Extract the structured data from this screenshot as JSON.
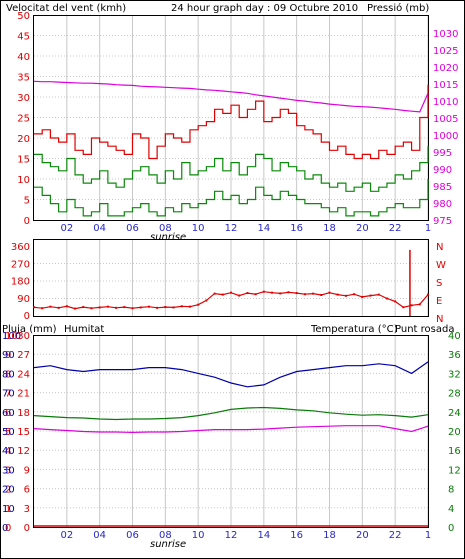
{
  "colors": {
    "wind": "#e00000",
    "gust": "#e00000",
    "avg": "#0a8a0a",
    "pressure": "#dd00dd",
    "humidity": "#0000aa",
    "temperature": "#0a7a0a",
    "dewpoint": "#dd00dd",
    "rain": "#e00000",
    "grid": "#c8c8c8",
    "text_blue": "#2828c8",
    "frame": "#000000"
  },
  "chart_data": [
    {
      "type": "line",
      "id": "wind-pressure",
      "title": "24 hour graph day : 09 Octubre 2010",
      "ylabel": "Velocitat del vent (kmh)",
      "ylabel_right": "Pressió (mb)",
      "ylim": [
        0,
        50
      ],
      "ylim_right": [
        975,
        1030
      ],
      "yticks": [
        "50",
        "45",
        "40",
        "35",
        "30",
        "25",
        "20",
        "15",
        "10",
        "5",
        "0"
      ],
      "yticks_right": [
        "1030",
        "1025",
        "1020",
        "1015",
        "1010",
        "1005",
        "1000",
        "995",
        "990",
        "985",
        "980",
        "975"
      ],
      "xticks": [
        "02",
        "04",
        "06",
        "08",
        "10",
        "12",
        "14",
        "16",
        "18",
        "20",
        "22",
        "1"
      ],
      "sunrise_label": "sunrise",
      "hours": [
        0,
        0.5,
        1,
        1.5,
        2,
        2.5,
        3,
        3.5,
        4,
        4.5,
        5,
        5.5,
        6,
        6.5,
        7,
        7.5,
        8,
        8.5,
        9,
        9.5,
        10,
        10.5,
        11,
        11.5,
        12,
        12.5,
        13,
        13.5,
        14,
        14.5,
        15,
        15.5,
        16,
        16.5,
        17,
        17.5,
        18,
        18.5,
        19,
        19.5,
        20,
        20.5,
        21,
        21.5,
        22,
        22.5,
        23,
        23.5,
        24
      ],
      "series": [
        {
          "key": "gust",
          "values": [
            21,
            22,
            20,
            19,
            21,
            17,
            16,
            20,
            19,
            18,
            17,
            16,
            21,
            20,
            15,
            18,
            21,
            20,
            19,
            22,
            23,
            24,
            27,
            26,
            28,
            25,
            27,
            29,
            24,
            25,
            27,
            26,
            23,
            22,
            21,
            19,
            17,
            18,
            16,
            15,
            16,
            15,
            17,
            16,
            18,
            19,
            17,
            25,
            33
          ]
        },
        {
          "key": "avg",
          "values": [
            16,
            14,
            13,
            12,
            15,
            11,
            9,
            10,
            12,
            9,
            8,
            10,
            12,
            13,
            11,
            9,
            12,
            10,
            14,
            11,
            12,
            13,
            15,
            12,
            14,
            11,
            13,
            16,
            15,
            12,
            14,
            13,
            12,
            10,
            11,
            9,
            8,
            9,
            7,
            8,
            9,
            7,
            8,
            9,
            11,
            10,
            12,
            14,
            18
          ]
        },
        {
          "key": "speed",
          "values": [
            8,
            6,
            4,
            2,
            5,
            3,
            1,
            2,
            4,
            1,
            1,
            2,
            3,
            4,
            2,
            1,
            3,
            2,
            4,
            3,
            4,
            5,
            7,
            5,
            6,
            4,
            5,
            8,
            6,
            5,
            7,
            6,
            5,
            4,
            4,
            3,
            2,
            3,
            1,
            2,
            2,
            1,
            2,
            3,
            4,
            3,
            3,
            5,
            10
          ]
        },
        {
          "key": "pressure",
          "axis": "right",
          "values": [
            1012.2,
            1012.1,
            1012.1,
            1012.0,
            1011.9,
            1011.8,
            1011.7,
            1011.7,
            1011.6,
            1011.5,
            1011.3,
            1011.2,
            1011.1,
            1010.9,
            1010.8,
            1010.7,
            1010.6,
            1010.5,
            1010.4,
            1010.3,
            1010.1,
            1009.9,
            1009.8,
            1009.6,
            1009.4,
            1009.2,
            1009.0,
            1008.6,
            1008.3,
            1008.0,
            1007.7,
            1007.4,
            1007.1,
            1006.9,
            1006.6,
            1006.4,
            1006.1,
            1005.9,
            1005.7,
            1005.5,
            1005.4,
            1005.3,
            1005.1,
            1004.9,
            1004.7,
            1004.4,
            1004.2,
            1004.0,
            1009.0
          ]
        }
      ]
    },
    {
      "type": "scatter",
      "id": "wind-direction",
      "ylim": [
        0,
        360
      ],
      "yticks": [
        "360",
        "270",
        "180",
        "90",
        "0"
      ],
      "compass": [
        "N",
        "W",
        "S",
        "E",
        "N"
      ],
      "xticks": [
        "02",
        "04",
        "06",
        "08",
        "10",
        "12",
        "14",
        "16",
        "18",
        "20",
        "22",
        "1"
      ],
      "hours": [
        0,
        0.5,
        1,
        1.5,
        2,
        2.5,
        3,
        3.5,
        4,
        4.5,
        5,
        5.5,
        6,
        6.5,
        7,
        7.5,
        8,
        8.5,
        9,
        9.5,
        10,
        10.5,
        11,
        11.5,
        12,
        12.5,
        13,
        13.5,
        14,
        14.5,
        15,
        15.5,
        16,
        16.5,
        17,
        17.5,
        18,
        18.5,
        19,
        19.5,
        20,
        20.5,
        21,
        21.5,
        22,
        22.5,
        23,
        23.5,
        24
      ],
      "values": [
        45,
        40,
        48,
        42,
        50,
        38,
        46,
        40,
        44,
        48,
        42,
        46,
        40,
        44,
        48,
        42,
        46,
        44,
        50,
        48,
        58,
        80,
        115,
        110,
        120,
        105,
        118,
        112,
        125,
        120,
        116,
        122,
        118,
        112,
        115,
        108,
        120,
        110,
        104,
        112,
        98,
        105,
        110,
        90,
        75,
        45,
        55,
        60,
        110
      ]
    },
    {
      "type": "line",
      "id": "rain-hum-temp",
      "legend": [
        "Pluja (mm)",
        "Humitat",
        "Temperatura (°C)",
        "Punt rosada"
      ],
      "yticks_rain": [
        "10",
        "9",
        "8",
        "7",
        "6",
        "5",
        "4",
        "3",
        "2",
        "1",
        "0"
      ],
      "yticks_hum": [
        "100",
        "90",
        "80",
        "70",
        "60",
        "50",
        "40",
        "30",
        "20",
        "10",
        "0"
      ],
      "yticks_temp_left": [
        "30",
        "27",
        "24",
        "21",
        "18",
        "15",
        "12",
        "9",
        "6",
        "3",
        "0"
      ],
      "yticks_right": [
        "40",
        "36",
        "32",
        "28",
        "24",
        "20",
        "16",
        "12",
        "8",
        "4",
        "0"
      ],
      "xticks": [
        "02",
        "04",
        "06",
        "08",
        "10",
        "12",
        "14",
        "16",
        "18",
        "20",
        "22",
        "1"
      ],
      "sunrise_label": "sunrise",
      "hours": [
        0,
        1,
        2,
        3,
        4,
        5,
        6,
        7,
        8,
        9,
        10,
        11,
        12,
        13,
        14,
        15,
        16,
        17,
        18,
        19,
        20,
        21,
        22,
        23,
        24
      ],
      "series": [
        {
          "key": "humidity",
          "values": [
            83,
            84,
            82,
            81,
            82,
            82,
            82,
            83,
            83,
            82,
            80,
            78,
            75,
            73,
            74,
            78,
            81,
            82,
            83,
            84,
            84,
            85,
            84,
            80,
            86
          ]
        },
        {
          "key": "temperature",
          "values": [
            23.2,
            23.0,
            22.8,
            22.7,
            22.5,
            22.4,
            22.5,
            22.5,
            22.6,
            22.8,
            23.2,
            23.8,
            24.5,
            24.8,
            24.9,
            24.7,
            24.4,
            24.2,
            23.8,
            23.5,
            23.3,
            23.4,
            23.2,
            22.9,
            23.4
          ]
        },
        {
          "key": "dewpoint",
          "values": [
            20.5,
            20.3,
            20.1,
            19.9,
            19.8,
            19.8,
            19.7,
            19.8,
            19.8,
            19.9,
            20.1,
            20.3,
            20.3,
            20.3,
            20.4,
            20.6,
            20.8,
            20.9,
            21.0,
            21.1,
            21.1,
            21.1,
            20.5,
            19.9,
            21.0
          ]
        },
        {
          "key": "rain",
          "values": [
            0,
            0,
            0,
            0,
            0,
            0,
            0,
            0,
            0,
            0,
            0,
            0,
            0,
            0,
            0,
            0,
            0,
            0,
            0,
            0,
            0,
            0,
            0,
            0,
            0
          ]
        }
      ]
    }
  ]
}
